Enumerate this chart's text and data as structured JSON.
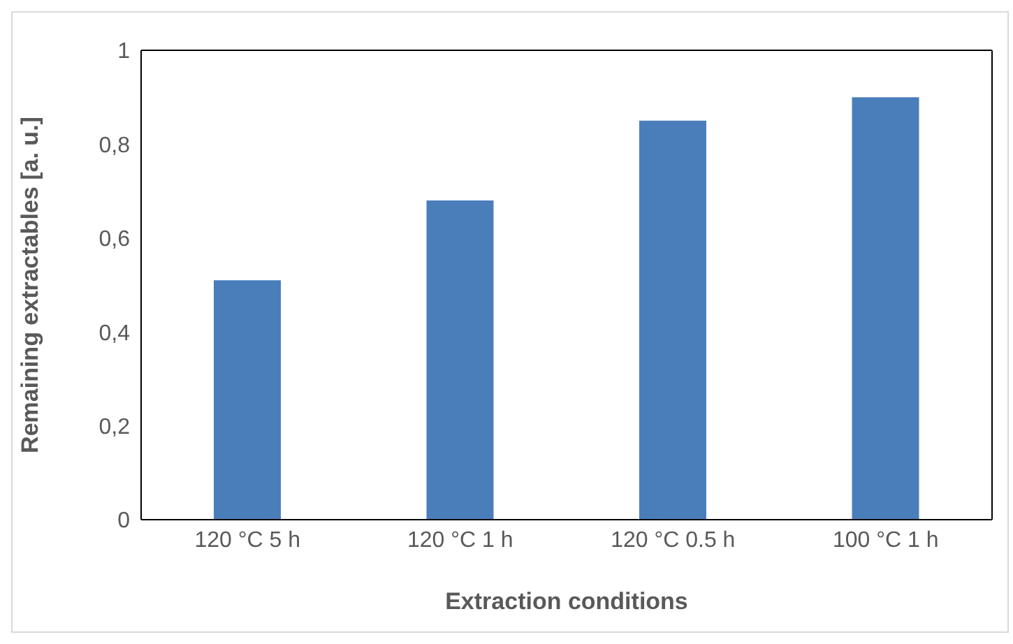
{
  "chart_data": {
    "type": "bar",
    "xlabel": "Extraction conditions",
    "ylabel": "Remaining extractables [a. u.]",
    "categories": [
      "120 °C 5 h",
      "120 °C 1 h",
      "120 °C 0.5 h",
      "100 °C 1 h"
    ],
    "values": [
      0.51,
      0.68,
      0.85,
      0.9
    ],
    "color": "#4a7ebb",
    "ylim": [
      0,
      1
    ],
    "yticks": [
      0,
      {
        "value": 0.2,
        "label": "0,2"
      },
      {
        "value": 0.4,
        "label": "0,4"
      },
      {
        "value": 0.6,
        "label": "0,6"
      },
      {
        "value": 0.8,
        "label": "0,8"
      },
      1
    ],
    "grid": false,
    "legend": false
  }
}
